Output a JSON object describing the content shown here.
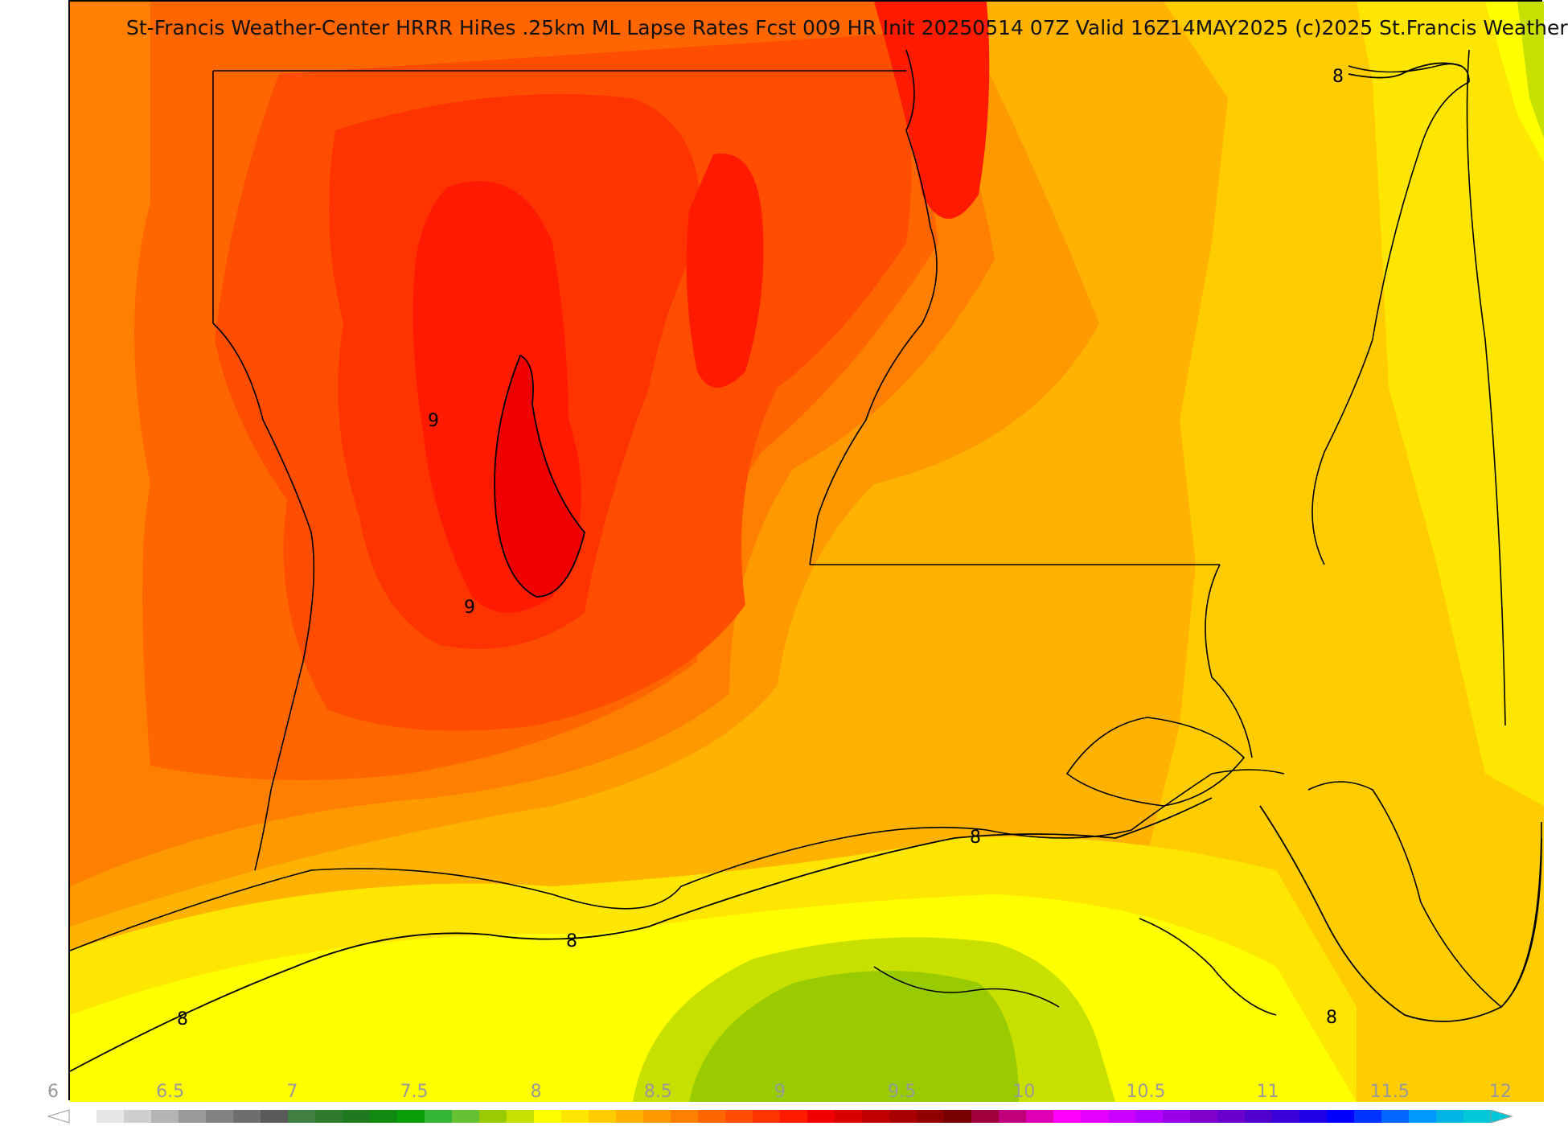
{
  "title": "St-Francis Weather-Center HRRR HiRes .25km ML Lapse Rates  Fcst 009 HR Init 20250514 07Z  Valid 16Z14MAY2025   (c)2025 St.Francis Weather",
  "colorbar": {
    "min": 6,
    "max": 12,
    "tick_labels": [
      "6",
      "6.5",
      "7",
      "7.5",
      "8",
      "8.5",
      "9",
      "9.5",
      "10",
      "10.5",
      "11",
      "11.5",
      "12"
    ],
    "colors": [
      "#ffffff",
      "#e6e6e6",
      "#cfcfcf",
      "#b4b4b4",
      "#9a9a9a",
      "#828282",
      "#6e6e6e",
      "#5a5a5a",
      "#3f7f3f",
      "#2f7a2f",
      "#1f7a1f",
      "#118a11",
      "#0aa00a",
      "#33b433",
      "#66c233",
      "#99cc00",
      "#c8e000",
      "#ffff00",
      "#ffe600",
      "#ffcc00",
      "#ffb300",
      "#ff9900",
      "#ff7f00",
      "#ff6600",
      "#ff4d00",
      "#ff3300",
      "#ff1a00",
      "#f00000",
      "#d80000",
      "#c00000",
      "#a80000",
      "#900000",
      "#7a0000",
      "#a0003c",
      "#c0007a",
      "#e000b4",
      "#ff00ff",
      "#e600ff",
      "#cc00ff",
      "#b400ff",
      "#9a00e6",
      "#8200cc",
      "#6a00cc",
      "#5000cc",
      "#3a00d8",
      "#2000e6",
      "#0000ff",
      "#0033ff",
      "#0066ff",
      "#0099ff",
      "#00b4e6",
      "#00c8d8"
    ]
  },
  "contours": [
    {
      "value": "9"
    },
    {
      "value": "9"
    },
    {
      "value": "8"
    },
    {
      "value": "8"
    },
    {
      "value": "8"
    },
    {
      "value": "8"
    },
    {
      "value": "8"
    }
  ]
}
